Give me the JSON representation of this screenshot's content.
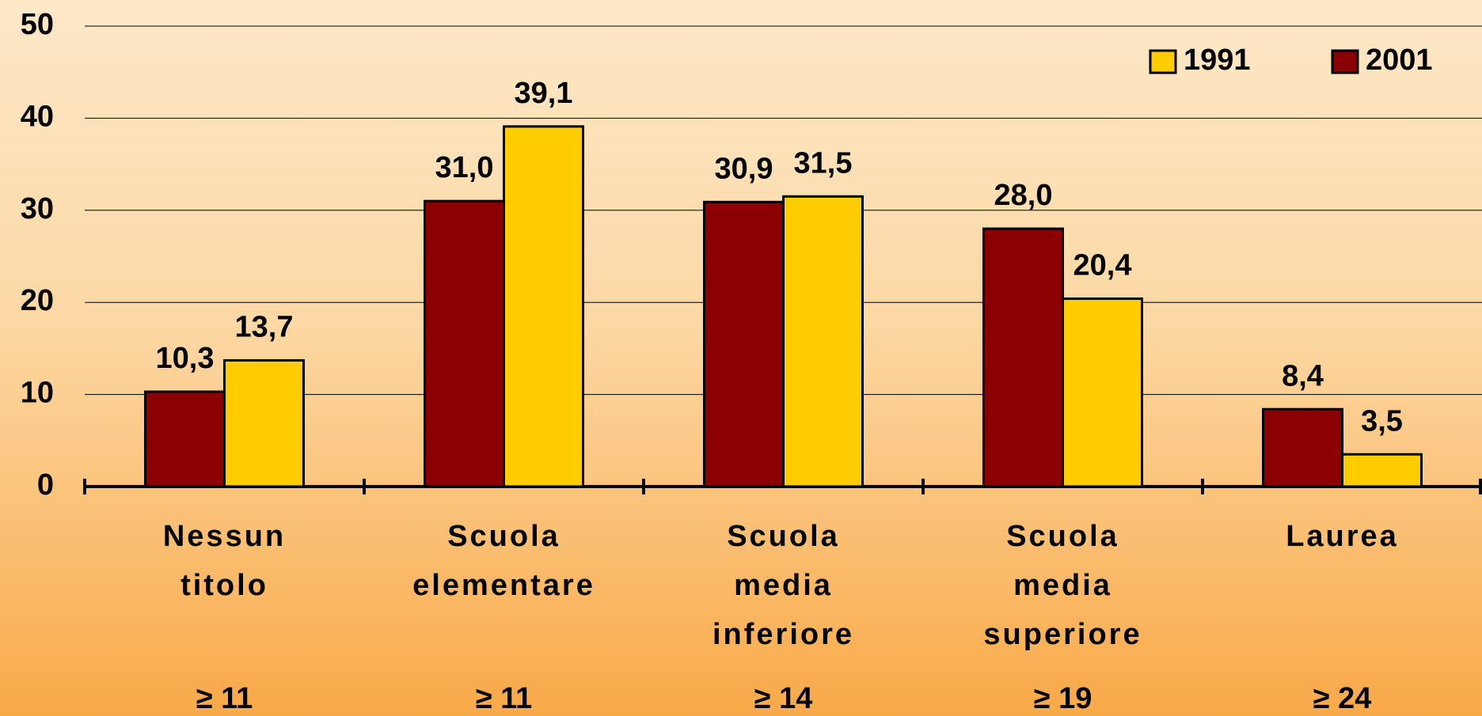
{
  "chart_data": {
    "type": "bar",
    "categories": [
      [
        "Nessun",
        "titolo"
      ],
      [
        "Scuola",
        "elementare"
      ],
      [
        "Scuola",
        "media",
        "inferiore"
      ],
      [
        "Scuola",
        "media",
        "superiore"
      ],
      [
        "Laurea"
      ]
    ],
    "thresholds": [
      "≥ 11",
      "≥ 11",
      "≥ 14",
      "≥ 19",
      "≥ 24"
    ],
    "series": [
      {
        "name": "1991",
        "color": "#ffcc00",
        "values": [
          13.7,
          39.1,
          31.5,
          20.4,
          3.5
        ],
        "value_labels": [
          "13,7",
          "39,1",
          "31,5",
          "20,4",
          "3,5"
        ]
      },
      {
        "name": "2001",
        "color": "#8b0000",
        "values": [
          10.3,
          31.0,
          30.9,
          28.0,
          8.4
        ],
        "value_labels": [
          "10,3",
          "31,0",
          "30,9",
          "28,0",
          "8,4"
        ]
      }
    ],
    "ylim": [
      0,
      50
    ],
    "yticks": [
      0,
      10,
      20,
      30,
      40,
      50
    ],
    "grid": true,
    "legend": "top-right"
  }
}
